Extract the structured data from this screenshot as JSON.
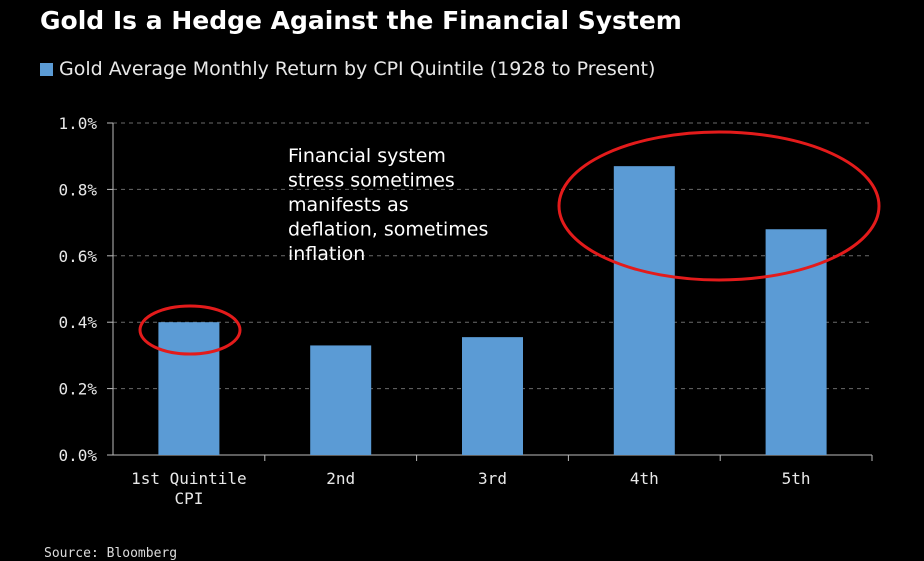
{
  "title": "Gold Is a Hedge Against the Financial System",
  "legend": {
    "label": "Gold Average Monthly Return by CPI Quintile (1928 to Present)",
    "color": "#5b9bd5"
  },
  "annotation": [
    "Financial system",
    "stress sometimes",
    "manifests as",
    "deflation, sometimes",
    "inflation"
  ],
  "source": "Source: Bloomberg",
  "chart_data": {
    "type": "bar",
    "categories": [
      [
        "1st Quintile",
        "CPI"
      ],
      [
        "2nd"
      ],
      [
        "3rd"
      ],
      [
        "4th"
      ],
      [
        "5th"
      ]
    ],
    "series": [
      {
        "name": "Gold Average Monthly Return by CPI Quintile (1928 to Present)",
        "values": [
          0.4,
          0.33,
          0.355,
          0.87,
          0.68
        ]
      }
    ],
    "ylim": [
      0,
      1.0
    ],
    "yticks": [
      0,
      0.2,
      0.4,
      0.6,
      0.8,
      1.0
    ],
    "ytick_labels": [
      "0.0%",
      "0.2%",
      "0.4%",
      "0.6%",
      "0.8%",
      "1.0%"
    ],
    "grid": "dashed-horizontal",
    "bar_color": "#5b9bd5",
    "highlight_color": "#e31b1b"
  }
}
